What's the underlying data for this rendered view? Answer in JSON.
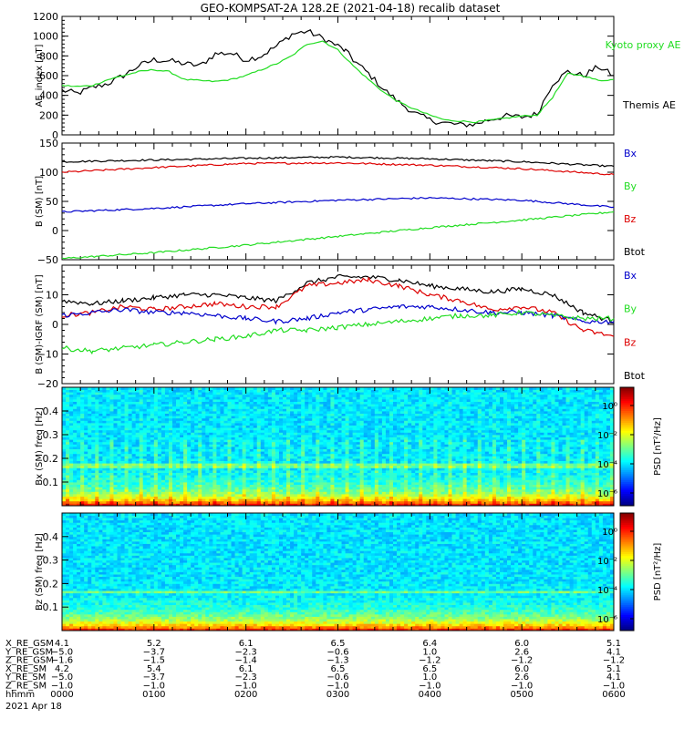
{
  "title": "GEO-KOMPSAT-2A 128.2E (2021-04-18) recalib dataset",
  "colors": {
    "black": "#000000",
    "green": "#22dd22",
    "blue": "#0000cc",
    "red": "#dd0000"
  },
  "chart_data": [
    {
      "type": "line",
      "ylabel": "AE_index [nT]",
      "ylim": [
        0,
        1200
      ],
      "yticks": [
        0,
        200,
        400,
        600,
        800,
        1000,
        1200
      ],
      "xlim": [
        0,
        360
      ],
      "legend": [
        "Kyoto proxy AE",
        "Themis AE"
      ],
      "series": [
        {
          "name": "Themis AE",
          "color": "#000000",
          "x": [
            0,
            10,
            20,
            30,
            40,
            50,
            60,
            70,
            80,
            90,
            100,
            110,
            120,
            130,
            140,
            150,
            160,
            170,
            180,
            185,
            190,
            200,
            210,
            220,
            230,
            240,
            250,
            260,
            270,
            280,
            290,
            300,
            310,
            320,
            330,
            340,
            350,
            360
          ],
          "values": [
            450,
            420,
            480,
            520,
            600,
            700,
            760,
            750,
            720,
            700,
            820,
            830,
            760,
            800,
            900,
            1020,
            1050,
            980,
            900,
            850,
            760,
            620,
            460,
            330,
            220,
            150,
            120,
            100,
            110,
            160,
            190,
            180,
            210,
            520,
            640,
            600,
            690,
            600
          ]
        },
        {
          "name": "Kyoto proxy AE",
          "color": "#22dd22",
          "x": [
            0,
            10,
            20,
            30,
            40,
            50,
            60,
            70,
            80,
            90,
            100,
            110,
            120,
            130,
            140,
            150,
            160,
            170,
            180,
            190,
            200,
            210,
            220,
            230,
            240,
            250,
            260,
            270,
            280,
            290,
            300,
            310,
            320,
            330,
            340,
            350,
            360
          ],
          "values": [
            500,
            490,
            500,
            560,
            600,
            640,
            660,
            640,
            560,
            550,
            540,
            560,
            600,
            660,
            720,
            800,
            920,
            950,
            860,
            700,
            560,
            430,
            330,
            260,
            200,
            150,
            140,
            130,
            150,
            170,
            190,
            200,
            380,
            620,
            600,
            550,
            560
          ]
        }
      ]
    },
    {
      "type": "line",
      "ylabel": "B (SM) [nT]",
      "ylim": [
        -50,
        150
      ],
      "yticks": [
        -50,
        0,
        50,
        100,
        150
      ],
      "xlim": [
        0,
        360
      ],
      "legend": [
        "Bx",
        "By",
        "Bz",
        "Btot"
      ],
      "series": [
        {
          "name": "Btot",
          "color": "#000000",
          "x": [
            0,
            60,
            120,
            180,
            240,
            300,
            360
          ],
          "values": [
            118,
            121,
            124,
            126,
            123,
            118,
            110
          ]
        },
        {
          "name": "Bz",
          "color": "#dd0000",
          "x": [
            0,
            60,
            120,
            180,
            240,
            300,
            360
          ],
          "values": [
            100,
            108,
            115,
            116,
            112,
            106,
            96
          ]
        },
        {
          "name": "Bx",
          "color": "#0000cc",
          "x": [
            0,
            60,
            120,
            180,
            240,
            300,
            360
          ],
          "values": [
            32,
            38,
            46,
            52,
            56,
            52,
            40
          ]
        },
        {
          "name": "By",
          "color": "#22dd22",
          "x": [
            0,
            60,
            120,
            180,
            240,
            300,
            360
          ],
          "values": [
            -48,
            -38,
            -25,
            -10,
            5,
            18,
            32
          ]
        }
      ]
    },
    {
      "type": "line",
      "ylabel": "B (SM)-IGRF (SM) [nT]",
      "ylim": [
        -20,
        20
      ],
      "yticks": [
        -20,
        -10,
        0,
        10
      ],
      "xlim": [
        0,
        360
      ],
      "legend": [
        "Bx",
        "By",
        "Bz",
        "Btot"
      ],
      "series": [
        {
          "name": "Btot",
          "color": "#000000",
          "x": [
            0,
            20,
            40,
            60,
            80,
            100,
            120,
            140,
            160,
            180,
            200,
            220,
            240,
            260,
            280,
            300,
            320,
            340,
            360
          ],
          "values": [
            8,
            7,
            8,
            9,
            10,
            10,
            9,
            8,
            14,
            16,
            16,
            15,
            13,
            12,
            11,
            12,
            10,
            4,
            1
          ]
        },
        {
          "name": "Bz",
          "color": "#dd0000",
          "x": [
            0,
            20,
            40,
            60,
            80,
            100,
            120,
            140,
            160,
            180,
            200,
            220,
            240,
            260,
            280,
            300,
            320,
            340,
            360
          ],
          "values": [
            3,
            4,
            6,
            5,
            6,
            7,
            6,
            6,
            13,
            14,
            15,
            13,
            10,
            8,
            5,
            6,
            4,
            -2,
            -4
          ]
        },
        {
          "name": "Bx",
          "color": "#0000cc",
          "x": [
            0,
            20,
            40,
            60,
            80,
            100,
            120,
            140,
            160,
            180,
            200,
            220,
            240,
            260,
            280,
            300,
            320,
            340,
            360
          ],
          "values": [
            3,
            4,
            5,
            4,
            4,
            3,
            2,
            1,
            2,
            4,
            5,
            6,
            6,
            5,
            4,
            4,
            3,
            1,
            1
          ]
        },
        {
          "name": "By",
          "color": "#22dd22",
          "x": [
            0,
            20,
            40,
            60,
            80,
            100,
            120,
            140,
            160,
            180,
            200,
            220,
            240,
            260,
            280,
            300,
            320,
            340,
            360
          ],
          "values": [
            -8,
            -9,
            -8,
            -7,
            -6,
            -5,
            -4,
            -2,
            -2,
            -1,
            0,
            1,
            2,
            3,
            3,
            4,
            3,
            2,
            2
          ]
        }
      ]
    },
    {
      "type": "heatmap",
      "ylabel": "Bx (SM) freq [Hz]",
      "ylim": [
        0,
        0.5
      ],
      "yticks": [
        0.1,
        0.2,
        0.3,
        0.4
      ],
      "xlim": [
        0,
        360
      ],
      "colorbar_label": "PSD [nT²/Hz]",
      "colorbar_ticks": [
        "10⁰",
        "10⁻²",
        "10⁻⁴",
        "10⁻⁶"
      ]
    },
    {
      "type": "heatmap",
      "ylabel": "Bz (SM) freq [Hz]",
      "ylim": [
        0,
        0.5
      ],
      "yticks": [
        0.1,
        0.2,
        0.3,
        0.4
      ],
      "xlim": [
        0,
        360
      ],
      "colorbar_label": "PSD [nT²/Hz]",
      "colorbar_ticks": [
        "10⁰",
        "10⁻²",
        "10⁻⁴",
        "10⁻⁶"
      ]
    }
  ],
  "ephemeris": {
    "labels": [
      "X_RE_GSM",
      "Y_RE_GSM",
      "Z_RE_GSM",
      "X_RE_SM",
      "Y_RE_SM",
      "Z_RE_SM",
      "hhmm"
    ],
    "columns": [
      [
        "4.1",
        "-5.0",
        "-1.6",
        "4.2",
        "-5.0",
        "-1.0",
        "0000"
      ],
      [
        "5.2",
        "-3.7",
        "-1.5",
        "5.4",
        "-3.7",
        "-1.0",
        "0100"
      ],
      [
        "6.1",
        "-2.3",
        "-1.4",
        "6.1",
        "-2.3",
        "-1.0",
        "0200"
      ],
      [
        "6.5",
        "-0.6",
        "-1.3",
        "6.5",
        "-0.6",
        "-1.0",
        "0300"
      ],
      [
        "6.4",
        "1.0",
        "-1.2",
        "6.5",
        "1.0",
        "-1.0",
        "0400"
      ],
      [
        "6.0",
        "2.6",
        "-1.2",
        "6.0",
        "2.6",
        "-1.0",
        "0500"
      ],
      [
        "5.1",
        "4.1",
        "-1.2",
        "5.1",
        "4.1",
        "-1.0",
        "0600"
      ]
    ],
    "date": "2021 Apr 18"
  }
}
